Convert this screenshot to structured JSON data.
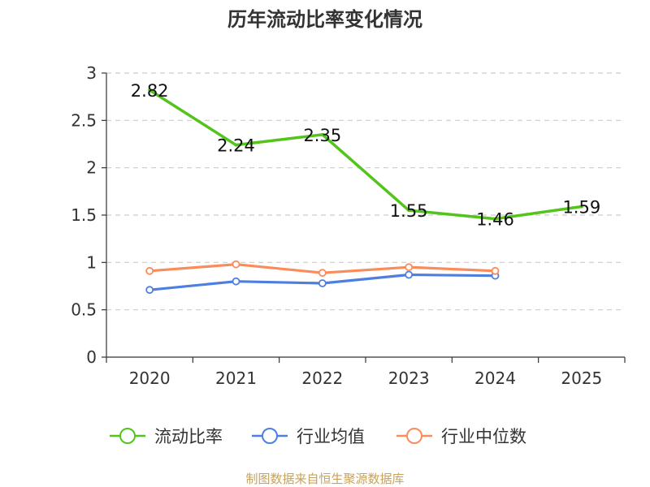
{
  "chart_data": {
    "type": "line",
    "title": "历年流动比率变化情况",
    "categories": [
      "2020",
      "2021",
      "2022",
      "2023",
      "2024",
      "2025"
    ],
    "ylim": [
      0,
      3
    ],
    "yticks": [
      "0",
      "0.5",
      "1",
      "1.5",
      "2",
      "2.5",
      "3"
    ],
    "ytick_values": [
      0,
      0.5,
      1,
      1.5,
      2,
      2.5,
      3
    ],
    "grid": true,
    "legend_position": "bottom",
    "series": [
      {
        "name": "流动比率",
        "color": "#52c41a",
        "values": [
          2.82,
          2.24,
          2.35,
          1.55,
          1.46,
          1.59
        ],
        "labels": [
          "2.82",
          "2.24",
          "2.35",
          "1.55",
          "1.46",
          "1.59"
        ]
      },
      {
        "name": "行业均值",
        "color": "#4e7fe0",
        "values": [
          0.71,
          0.8,
          0.78,
          0.87,
          0.86,
          null
        ]
      },
      {
        "name": "行业中位数",
        "color": "#fa8c5c",
        "values": [
          0.91,
          0.98,
          0.89,
          0.95,
          0.91,
          null
        ]
      }
    ]
  },
  "footer": {
    "source": "制图数据来自恒生聚源数据库"
  }
}
